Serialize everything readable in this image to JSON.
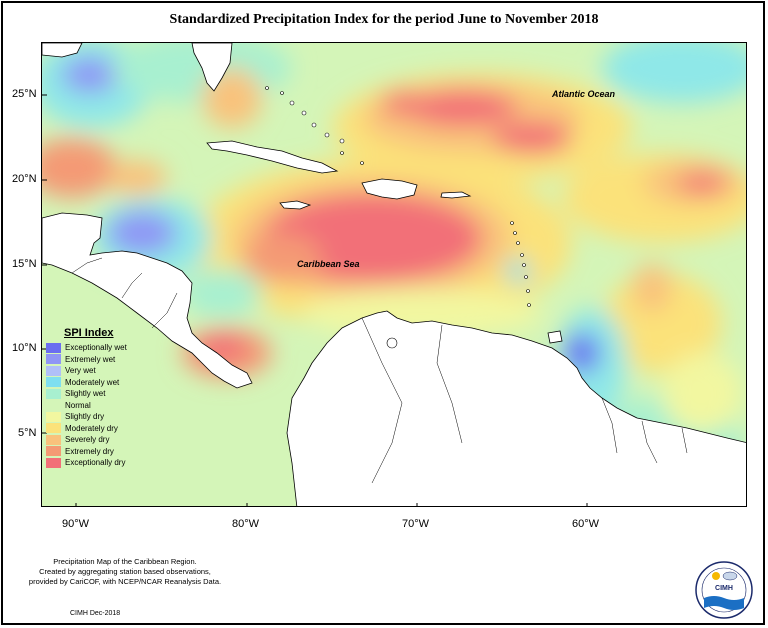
{
  "title": "Standardized Precipitation Index for the period June to November 2018",
  "map": {
    "lat_labels": [
      "25°N",
      "20°N",
      "15°N",
      "10°N",
      "5°N"
    ],
    "lon_labels": [
      "90°W",
      "80°W",
      "70°W",
      "60°W"
    ],
    "place_labels": {
      "atlantic": "Atlantic Ocean",
      "caribbean": "Caribbean Sea"
    }
  },
  "legend": {
    "title": "SPI Index",
    "items": [
      {
        "label": "Exceptionally wet",
        "color": "#6a6ef0"
      },
      {
        "label": "Extremely wet",
        "color": "#8f96f5"
      },
      {
        "label": "Very wet",
        "color": "#b0c0f8"
      },
      {
        "label": "Moderately wet",
        "color": "#7fdff0"
      },
      {
        "label": "Slightly wet",
        "color": "#a8f0d0"
      },
      {
        "label": "Normal",
        "color": "#d4f5b8"
      },
      {
        "label": "Slightly dry",
        "color": "#f2f7a0"
      },
      {
        "label": "Moderately dry",
        "color": "#fbe27a"
      },
      {
        "label": "Severely dry",
        "color": "#f9c27c"
      },
      {
        "label": "Extremely dry",
        "color": "#f49a74"
      },
      {
        "label": "Exceptionally dry",
        "color": "#f26f78"
      }
    ]
  },
  "footnote": {
    "line1": "Precipitation Map of the Caribbean Region.",
    "line2": "Created by aggregating station based observations,",
    "line3": "provided by CariCOF, with NCEP/NCAR Reanalysis Data.",
    "credit": "CIMH Dec-2018"
  },
  "logo": {
    "text": "CIMH",
    "color": "#1b2a6b"
  }
}
